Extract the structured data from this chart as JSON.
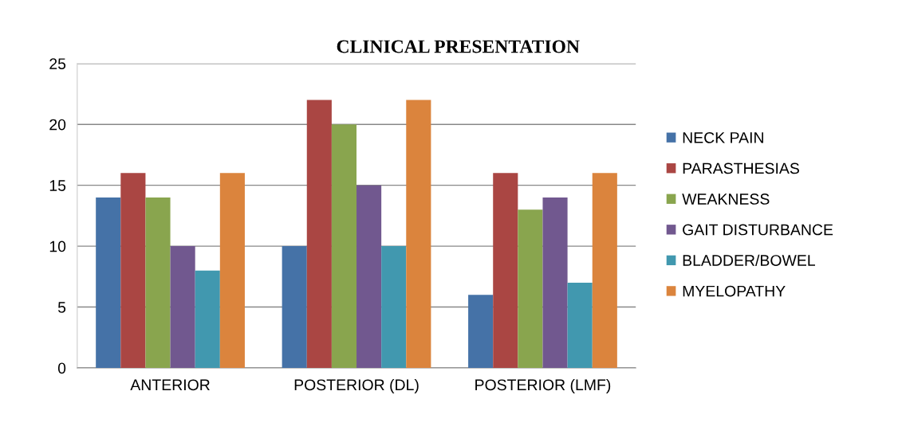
{
  "chart_data": {
    "type": "bar",
    "title": "CLINICAL PRESENTATION",
    "categories": [
      "ANTERIOR",
      "POSTERIOR (DL)",
      "POSTERIOR (LMF)"
    ],
    "series": [
      {
        "name": "NECK PAIN",
        "color": "#4572a7",
        "values": [
          14,
          10,
          6
        ]
      },
      {
        "name": "PARASTHESIAS",
        "color": "#aa4643",
        "values": [
          16,
          22,
          16
        ]
      },
      {
        "name": "WEAKNESS",
        "color": "#89a54e",
        "values": [
          14,
          20,
          13
        ]
      },
      {
        "name": "GAIT DISTURBANCE",
        "color": "#71588f",
        "values": [
          10,
          15,
          14
        ]
      },
      {
        "name": "BLADDER/BOWEL",
        "color": "#4198af",
        "values": [
          8,
          10,
          7
        ]
      },
      {
        "name": "MYELOPATHY",
        "color": "#db843d",
        "values": [
          16,
          22,
          16
        ]
      }
    ],
    "ylim": [
      0,
      25
    ],
    "yticks": [
      0,
      5,
      10,
      15,
      20,
      25
    ],
    "grid": "y",
    "legend": "right"
  }
}
